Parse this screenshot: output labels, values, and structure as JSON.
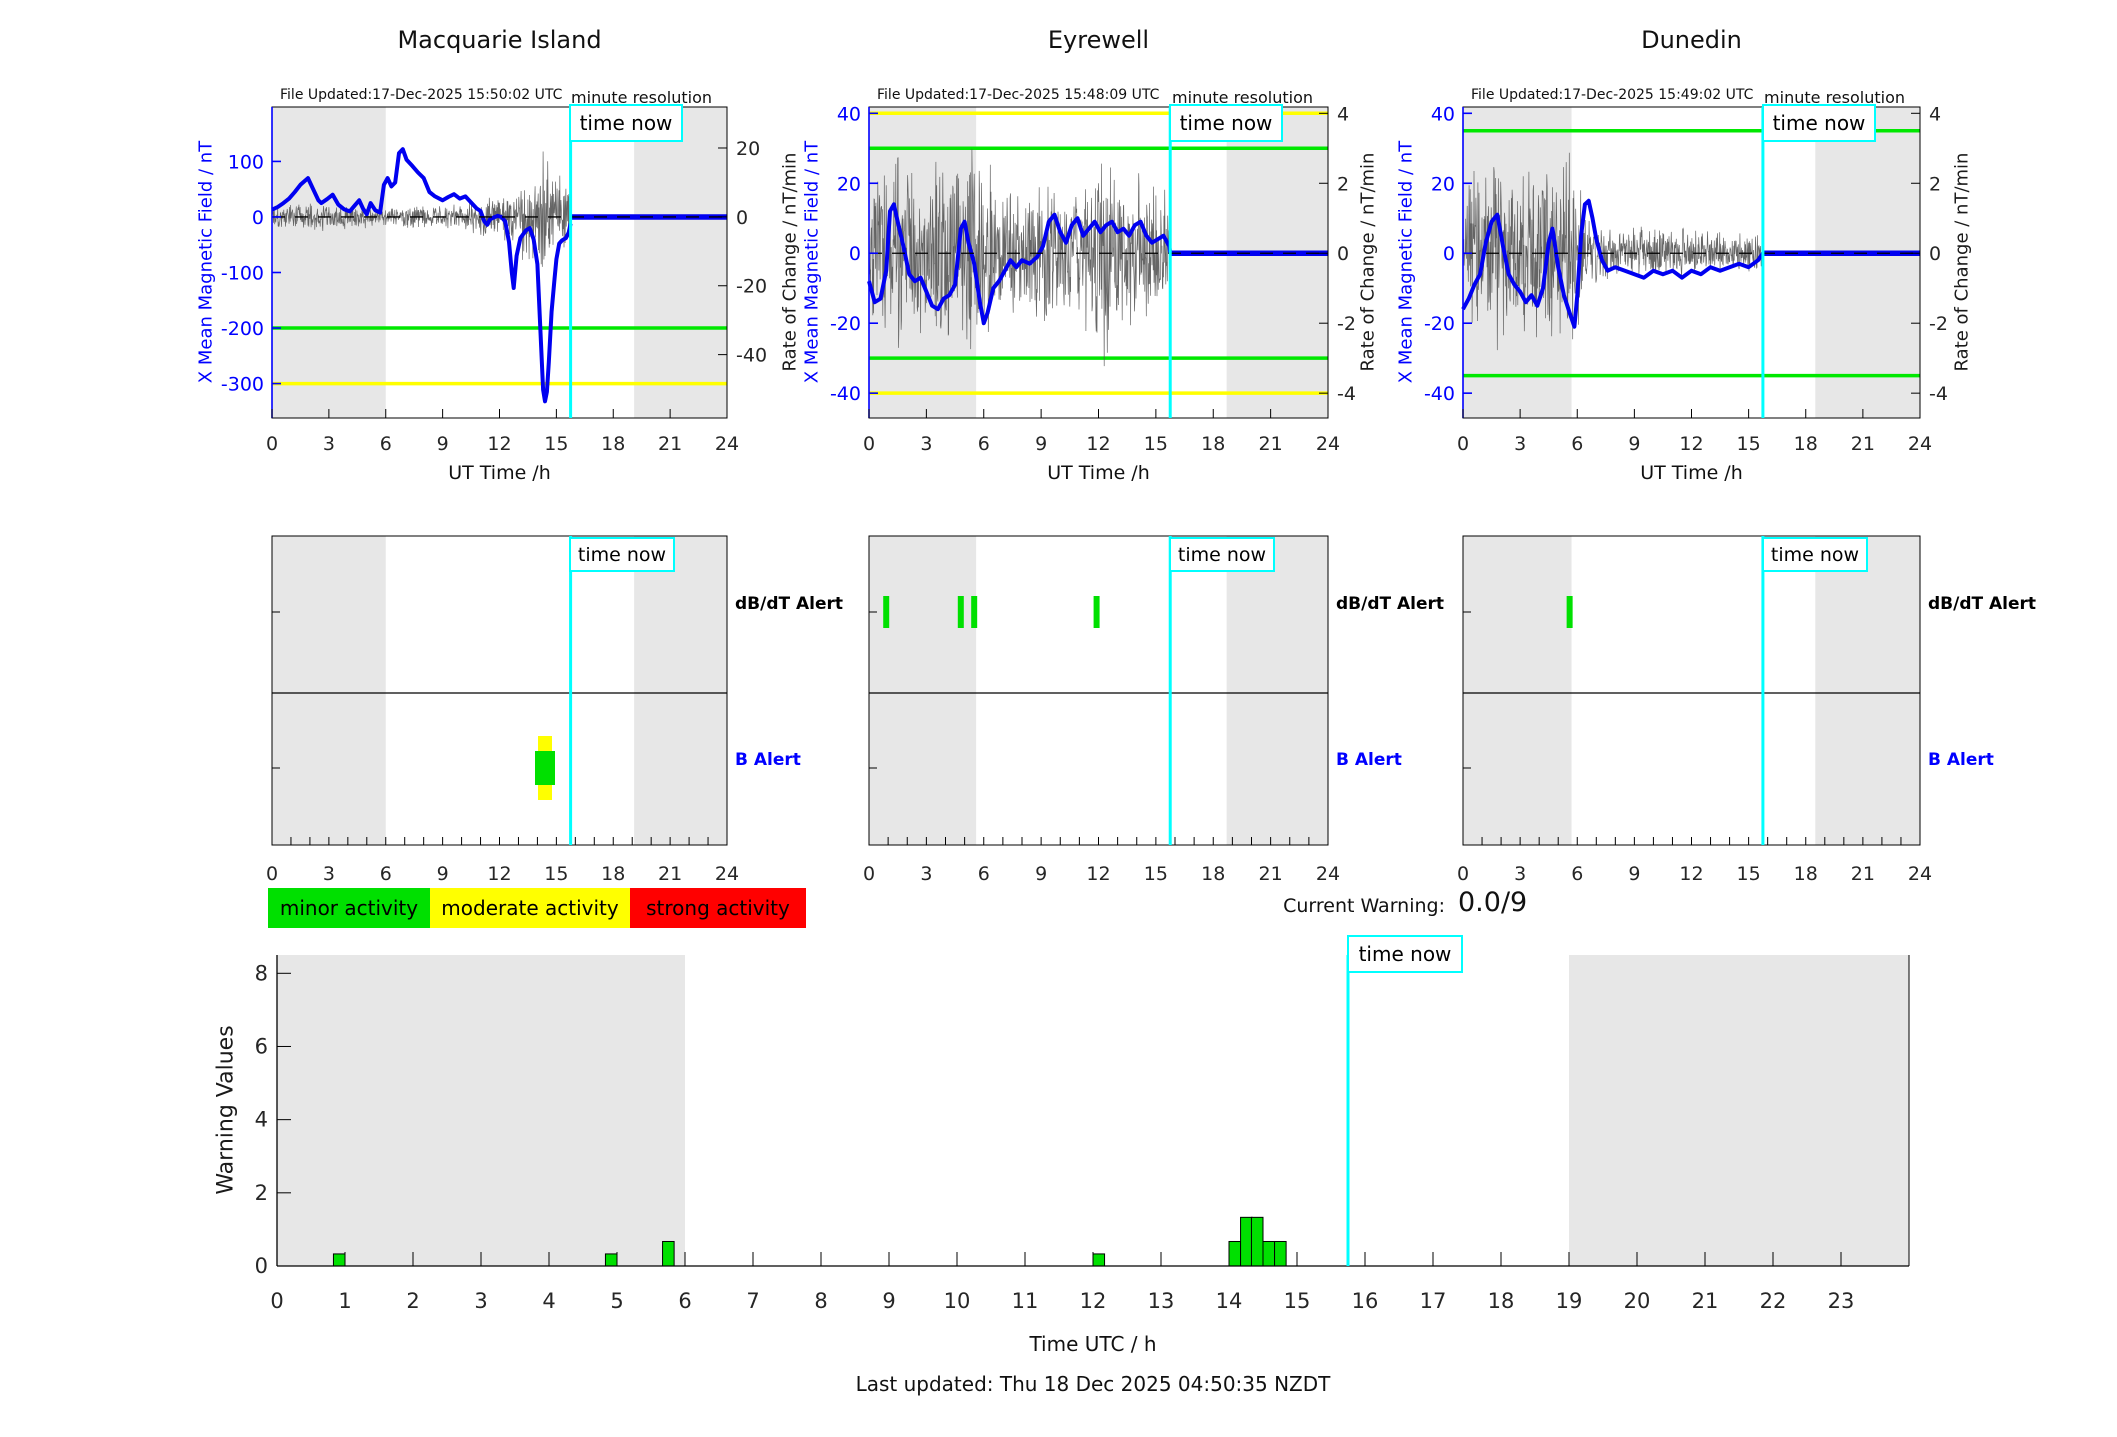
{
  "page": {
    "time_now_label": "time now",
    "current_warning_label": "Current Warning:",
    "current_warning_value": "0.0/9",
    "last_updated": "Last updated: Thu 18 Dec 2025 04:50:35 NZDT"
  },
  "legend": {
    "items": [
      {
        "label": "minor activity",
        "color": "#00e000"
      },
      {
        "label": "moderate activity",
        "color": "#ffff00"
      },
      {
        "label": "strong activity",
        "color": "#ff0000"
      }
    ]
  },
  "colors": {
    "night_band": "#e7e7e7",
    "b_field_line": "#0000f0",
    "rate_line": "#555555",
    "time_now": "#00ffff",
    "minor": "#00e000",
    "moderate": "#ffff00",
    "strong": "#ff0000",
    "axis_blue": "#0000ff"
  },
  "chart_data": [
    {
      "type": "line",
      "title": "Macquarie Island",
      "file_updated": "File Updated:17-Dec-2025 15:50:02 UTC",
      "resolution_label": "minute resolution",
      "xlabel": "UT Time /h",
      "ylabel_left": "X Mean Magnetic Field / nT",
      "ylabel_right": "Rate of Change / nT/min",
      "xlim": [
        0,
        24
      ],
      "xticks": [
        0,
        3,
        6,
        9,
        12,
        15,
        18,
        21,
        24
      ],
      "ylim_left": [
        -362,
        198
      ],
      "yticks_left": [
        100,
        0,
        -100,
        -200,
        -300
      ],
      "ylim_right": [
        -58.4,
        31.9
      ],
      "yticks_right": [
        20,
        0,
        -20,
        -40
      ],
      "night_bands": [
        [
          0,
          6
        ],
        [
          19.1,
          24
        ]
      ],
      "time_now": 15.75,
      "thresholds": [
        {
          "value": -200,
          "color": "#00e800",
          "level": "minor"
        },
        {
          "value": -300,
          "color": "#ffff00",
          "level": "moderate"
        }
      ],
      "series_b_field": [
        [
          0,
          13
        ],
        [
          0.3,
          18
        ],
        [
          0.6,
          25
        ],
        [
          0.9,
          33
        ],
        [
          1.2,
          45
        ],
        [
          1.5,
          58
        ],
        [
          1.9,
          70
        ],
        [
          2.2,
          48
        ],
        [
          2.45,
          30
        ],
        [
          2.6,
          25
        ],
        [
          2.9,
          32
        ],
        [
          3.2,
          40
        ],
        [
          3.5,
          22
        ],
        [
          3.8,
          14
        ],
        [
          4.1,
          10
        ],
        [
          4.4,
          22
        ],
        [
          4.6,
          30
        ],
        [
          4.8,
          15
        ],
        [
          5,
          5
        ],
        [
          5.2,
          25
        ],
        [
          5.45,
          12
        ],
        [
          5.7,
          8
        ],
        [
          5.9,
          58
        ],
        [
          6.1,
          70
        ],
        [
          6.3,
          55
        ],
        [
          6.5,
          62
        ],
        [
          6.7,
          115
        ],
        [
          6.9,
          122
        ],
        [
          7.1,
          103
        ],
        [
          7.4,
          92
        ],
        [
          7.7,
          80
        ],
        [
          8,
          70
        ],
        [
          8.3,
          45
        ],
        [
          8.6,
          37
        ],
        [
          9,
          30
        ],
        [
          9.3,
          36
        ],
        [
          9.6,
          41
        ],
        [
          9.9,
          33
        ],
        [
          10.2,
          37
        ],
        [
          10.5,
          26
        ],
        [
          10.8,
          15
        ],
        [
          11,
          11
        ],
        [
          11.2,
          -8
        ],
        [
          11.35,
          -14
        ],
        [
          11.5,
          -4
        ],
        [
          11.7,
          -1
        ],
        [
          11.9,
          2
        ],
        [
          12.1,
          0
        ],
        [
          12.3,
          -8
        ],
        [
          12.5,
          -45
        ],
        [
          12.65,
          -100
        ],
        [
          12.75,
          -128
        ],
        [
          12.9,
          -70
        ],
        [
          13.1,
          -38
        ],
        [
          13.4,
          -24
        ],
        [
          13.6,
          -20
        ],
        [
          13.8,
          -40
        ],
        [
          14,
          -85
        ],
        [
          14.15,
          -200
        ],
        [
          14.3,
          -311
        ],
        [
          14.4,
          -332
        ],
        [
          14.5,
          -315
        ],
        [
          14.6,
          -262
        ],
        [
          14.75,
          -170
        ],
        [
          14.9,
          -112
        ],
        [
          15,
          -76
        ],
        [
          15.15,
          -48
        ],
        [
          15.3,
          -42
        ],
        [
          15.5,
          -38
        ],
        [
          15.65,
          -28
        ],
        [
          15.75,
          -12
        ]
      ],
      "flat_value_after_now": 0,
      "rate_noise_envelope": [
        [
          0,
          4
        ],
        [
          2,
          5
        ],
        [
          4,
          4
        ],
        [
          6,
          3
        ],
        [
          8,
          4
        ],
        [
          10,
          4
        ],
        [
          11,
          6
        ],
        [
          12,
          7
        ],
        [
          13,
          10
        ],
        [
          13.5,
          18
        ],
        [
          14,
          16
        ],
        [
          14.3,
          25
        ],
        [
          14.5,
          20
        ],
        [
          15,
          14
        ],
        [
          15.5,
          12
        ],
        [
          15.75,
          8
        ]
      ],
      "right_per_left_ratio": 6.2
    },
    {
      "type": "line",
      "title": "Eyrewell",
      "file_updated": "File Updated:17-Dec-2025 15:48:09 UTC",
      "resolution_label": "minute resolution",
      "xlabel": "UT Time /h",
      "ylabel_left": "X Mean Magnetic Field / nT",
      "ylabel_right": "Rate of Change / nT/min",
      "xlim": [
        0,
        24
      ],
      "xticks": [
        0,
        3,
        6,
        9,
        12,
        15,
        18,
        21,
        24
      ],
      "ylim_left": [
        -47.1,
        41.8
      ],
      "yticks_left": [
        40,
        20,
        0,
        -20,
        -40
      ],
      "ylim_right": [
        -4.71,
        4.18
      ],
      "yticks_right": [
        4,
        2,
        0,
        -2,
        -4
      ],
      "night_bands": [
        [
          0,
          5.6
        ],
        [
          18.7,
          24
        ]
      ],
      "time_now": 15.75,
      "thresholds": [
        {
          "value": 40,
          "color": "#ffff00",
          "level": "moderate"
        },
        {
          "value": 30,
          "color": "#00e800",
          "level": "minor"
        },
        {
          "value": -30,
          "color": "#00e800",
          "level": "minor"
        },
        {
          "value": -40,
          "color": "#ffff00",
          "level": "moderate"
        }
      ],
      "series_b_field": [
        [
          0,
          -8
        ],
        [
          0.3,
          -14
        ],
        [
          0.6,
          -13
        ],
        [
          0.9,
          -5
        ],
        [
          1.1,
          12
        ],
        [
          1.3,
          14
        ],
        [
          1.5,
          9
        ],
        [
          1.8,
          2
        ],
        [
          2.1,
          -6
        ],
        [
          2.4,
          -8
        ],
        [
          2.7,
          -7
        ],
        [
          3,
          -11
        ],
        [
          3.3,
          -15
        ],
        [
          3.6,
          -16
        ],
        [
          3.9,
          -13
        ],
        [
          4.2,
          -12
        ],
        [
          4.5,
          -9
        ],
        [
          4.8,
          7
        ],
        [
          5,
          9
        ],
        [
          5.2,
          3
        ],
        [
          5.5,
          -3
        ],
        [
          5.8,
          -14
        ],
        [
          6,
          -20
        ],
        [
          6.2,
          -17
        ],
        [
          6.5,
          -10
        ],
        [
          6.8,
          -8
        ],
        [
          7.1,
          -5
        ],
        [
          7.4,
          -2
        ],
        [
          7.7,
          -4
        ],
        [
          8,
          -2
        ],
        [
          8.4,
          -3
        ],
        [
          8.8,
          -1
        ],
        [
          9.1,
          2
        ],
        [
          9.4,
          9
        ],
        [
          9.7,
          11
        ],
        [
          10,
          6
        ],
        [
          10.3,
          3
        ],
        [
          10.6,
          8
        ],
        [
          10.9,
          10
        ],
        [
          11.2,
          5
        ],
        [
          11.5,
          7
        ],
        [
          11.8,
          9
        ],
        [
          12.1,
          6
        ],
        [
          12.4,
          8
        ],
        [
          12.7,
          9
        ],
        [
          13,
          6
        ],
        [
          13.3,
          7
        ],
        [
          13.6,
          5
        ],
        [
          13.9,
          8
        ],
        [
          14.2,
          9
        ],
        [
          14.5,
          5
        ],
        [
          14.8,
          3
        ],
        [
          15.1,
          4
        ],
        [
          15.4,
          5
        ],
        [
          15.7,
          2
        ],
        [
          15.75,
          0
        ]
      ],
      "flat_value_after_now": 0,
      "rate_noise_envelope": [
        [
          0,
          2.5
        ],
        [
          1,
          3
        ],
        [
          2,
          3
        ],
        [
          3,
          2.5
        ],
        [
          4,
          3
        ],
        [
          5,
          3.2
        ],
        [
          5.9,
          4.3
        ],
        [
          6.5,
          2
        ],
        [
          8,
          2
        ],
        [
          9,
          2.2
        ],
        [
          10,
          2.3
        ],
        [
          11,
          2
        ],
        [
          12,
          3.5
        ],
        [
          12.3,
          4.2
        ],
        [
          13,
          2.2
        ],
        [
          14,
          2.5
        ],
        [
          15,
          2.6
        ],
        [
          15.75,
          2
        ]
      ],
      "right_per_left_ratio": 10
    },
    {
      "type": "line",
      "title": "Dunedin",
      "file_updated": "File Updated:17-Dec-2025 15:49:02 UTC",
      "resolution_label": "minute resolution",
      "xlabel": "UT Time /h",
      "ylabel_left": "X Mean Magnetic Field / nT",
      "ylabel_right": "Rate of Change / nT/min",
      "xlim": [
        0,
        24
      ],
      "xticks": [
        0,
        3,
        6,
        9,
        12,
        15,
        18,
        21,
        24
      ],
      "ylim_left": [
        -47.1,
        41.8
      ],
      "yticks_left": [
        40,
        20,
        0,
        -20,
        -40
      ],
      "ylim_right": [
        -4.71,
        4.18
      ],
      "yticks_right": [
        4,
        2,
        0,
        -2,
        -4
      ],
      "night_bands": [
        [
          0,
          5.7
        ],
        [
          18.5,
          24
        ]
      ],
      "time_now": 15.75,
      "thresholds": [
        {
          "value": 35,
          "color": "#00e800",
          "level": "minor"
        },
        {
          "value": -35,
          "color": "#00e800",
          "level": "minor"
        }
      ],
      "series_b_field": [
        [
          0,
          -16
        ],
        [
          0.3,
          -13
        ],
        [
          0.6,
          -9
        ],
        [
          0.9,
          -6
        ],
        [
          1.2,
          3
        ],
        [
          1.5,
          9
        ],
        [
          1.8,
          11
        ],
        [
          2.1,
          2
        ],
        [
          2.4,
          -6
        ],
        [
          2.7,
          -9
        ],
        [
          3,
          -11
        ],
        [
          3.3,
          -14
        ],
        [
          3.6,
          -12
        ],
        [
          3.9,
          -15
        ],
        [
          4.2,
          -10
        ],
        [
          4.5,
          3
        ],
        [
          4.7,
          7
        ],
        [
          5,
          -4
        ],
        [
          5.3,
          -12
        ],
        [
          5.6,
          -17
        ],
        [
          5.85,
          -21
        ],
        [
          6,
          -12
        ],
        [
          6.2,
          5
        ],
        [
          6.4,
          14
        ],
        [
          6.6,
          15
        ],
        [
          6.8,
          10
        ],
        [
          7,
          4
        ],
        [
          7.3,
          -2
        ],
        [
          7.6,
          -5
        ],
        [
          8,
          -4
        ],
        [
          8.5,
          -5
        ],
        [
          9,
          -6
        ],
        [
          9.5,
          -7
        ],
        [
          10,
          -5
        ],
        [
          10.5,
          -6
        ],
        [
          11,
          -5
        ],
        [
          11.5,
          -7
        ],
        [
          12,
          -5
        ],
        [
          12.5,
          -6
        ],
        [
          13,
          -4
        ],
        [
          13.5,
          -5
        ],
        [
          14,
          -4
        ],
        [
          14.5,
          -3
        ],
        [
          15,
          -4
        ],
        [
          15.5,
          -2
        ],
        [
          15.75,
          0
        ]
      ],
      "flat_value_after_now": 0,
      "rate_noise_envelope": [
        [
          0,
          2.2
        ],
        [
          1,
          2.8
        ],
        [
          2,
          3
        ],
        [
          3,
          2.6
        ],
        [
          4,
          2.5
        ],
        [
          5,
          2.8
        ],
        [
          5.9,
          3.8
        ],
        [
          6.3,
          1.5
        ],
        [
          7,
          1
        ],
        [
          8,
          0.8
        ],
        [
          9,
          0.9
        ],
        [
          10,
          0.8
        ],
        [
          11,
          0.9
        ],
        [
          12,
          0.8
        ],
        [
          13,
          0.7
        ],
        [
          14,
          0.6
        ],
        [
          15,
          0.7
        ],
        [
          15.75,
          0.5
        ]
      ],
      "right_per_left_ratio": 10
    },
    {
      "type": "event-markers",
      "station": "Macquarie Island",
      "rows": [
        {
          "label": "dB/dT Alert"
        },
        {
          "label": "B Alert"
        }
      ],
      "xlim": [
        0,
        24
      ],
      "xticks": [
        0,
        3,
        6,
        9,
        12,
        15,
        18,
        21,
        24
      ],
      "night_bands": [
        [
          0,
          6
        ],
        [
          19.1,
          24
        ]
      ],
      "time_now": 15.75,
      "dbdt_events": [],
      "b_events": [
        {
          "hour": 14.4,
          "outer_color": "#ffff00",
          "inner_color": "#00e000"
        }
      ]
    },
    {
      "type": "event-markers",
      "station": "Eyrewell",
      "rows": [
        {
          "label": "dB/dT Alert"
        },
        {
          "label": "B Alert"
        }
      ],
      "xlim": [
        0,
        24
      ],
      "xticks": [
        0,
        3,
        6,
        9,
        12,
        15,
        18,
        21,
        24
      ],
      "night_bands": [
        [
          0,
          5.6
        ],
        [
          18.7,
          24
        ]
      ],
      "time_now": 15.75,
      "dbdt_events": [
        {
          "hour": 0.9
        },
        {
          "hour": 4.8
        },
        {
          "hour": 5.5
        },
        {
          "hour": 11.9
        }
      ],
      "b_events": []
    },
    {
      "type": "event-markers",
      "station": "Dunedin",
      "rows": [
        {
          "label": "dB/dT Alert"
        },
        {
          "label": "B Alert"
        }
      ],
      "xlim": [
        0,
        24
      ],
      "xticks": [
        0,
        3,
        6,
        9,
        12,
        15,
        18,
        21,
        24
      ],
      "night_bands": [
        [
          0,
          5.7
        ],
        [
          18.5,
          24
        ]
      ],
      "time_now": 15.75,
      "dbdt_events": [
        {
          "hour": 5.6
        }
      ],
      "b_events": []
    },
    {
      "type": "bar",
      "title": "",
      "xlabel": "Time UTC / h",
      "ylabel": "Warning Values",
      "xlim": [
        0,
        24
      ],
      "xticks": [
        0,
        1,
        2,
        3,
        4,
        5,
        6,
        7,
        8,
        9,
        10,
        11,
        12,
        13,
        14,
        15,
        16,
        17,
        18,
        19,
        20,
        21,
        22,
        23
      ],
      "ylim": [
        0,
        8.5
      ],
      "yticks": [
        0,
        2,
        4,
        6,
        8
      ],
      "night_bands": [
        [
          0,
          6
        ],
        [
          19,
          24
        ]
      ],
      "time_now": 15.75,
      "bar_width_hours": 0.17,
      "bars": [
        {
          "x": 0.83,
          "value": 0.33
        },
        {
          "x": 4.83,
          "value": 0.33
        },
        {
          "x": 5.67,
          "value": 0.67
        },
        {
          "x": 12.0,
          "value": 0.33
        },
        {
          "x": 14.0,
          "value": 0.67
        },
        {
          "x": 14.17,
          "value": 1.33
        },
        {
          "x": 14.33,
          "value": 1.33
        },
        {
          "x": 14.5,
          "value": 0.67
        },
        {
          "x": 14.67,
          "value": 0.67
        }
      ]
    }
  ]
}
